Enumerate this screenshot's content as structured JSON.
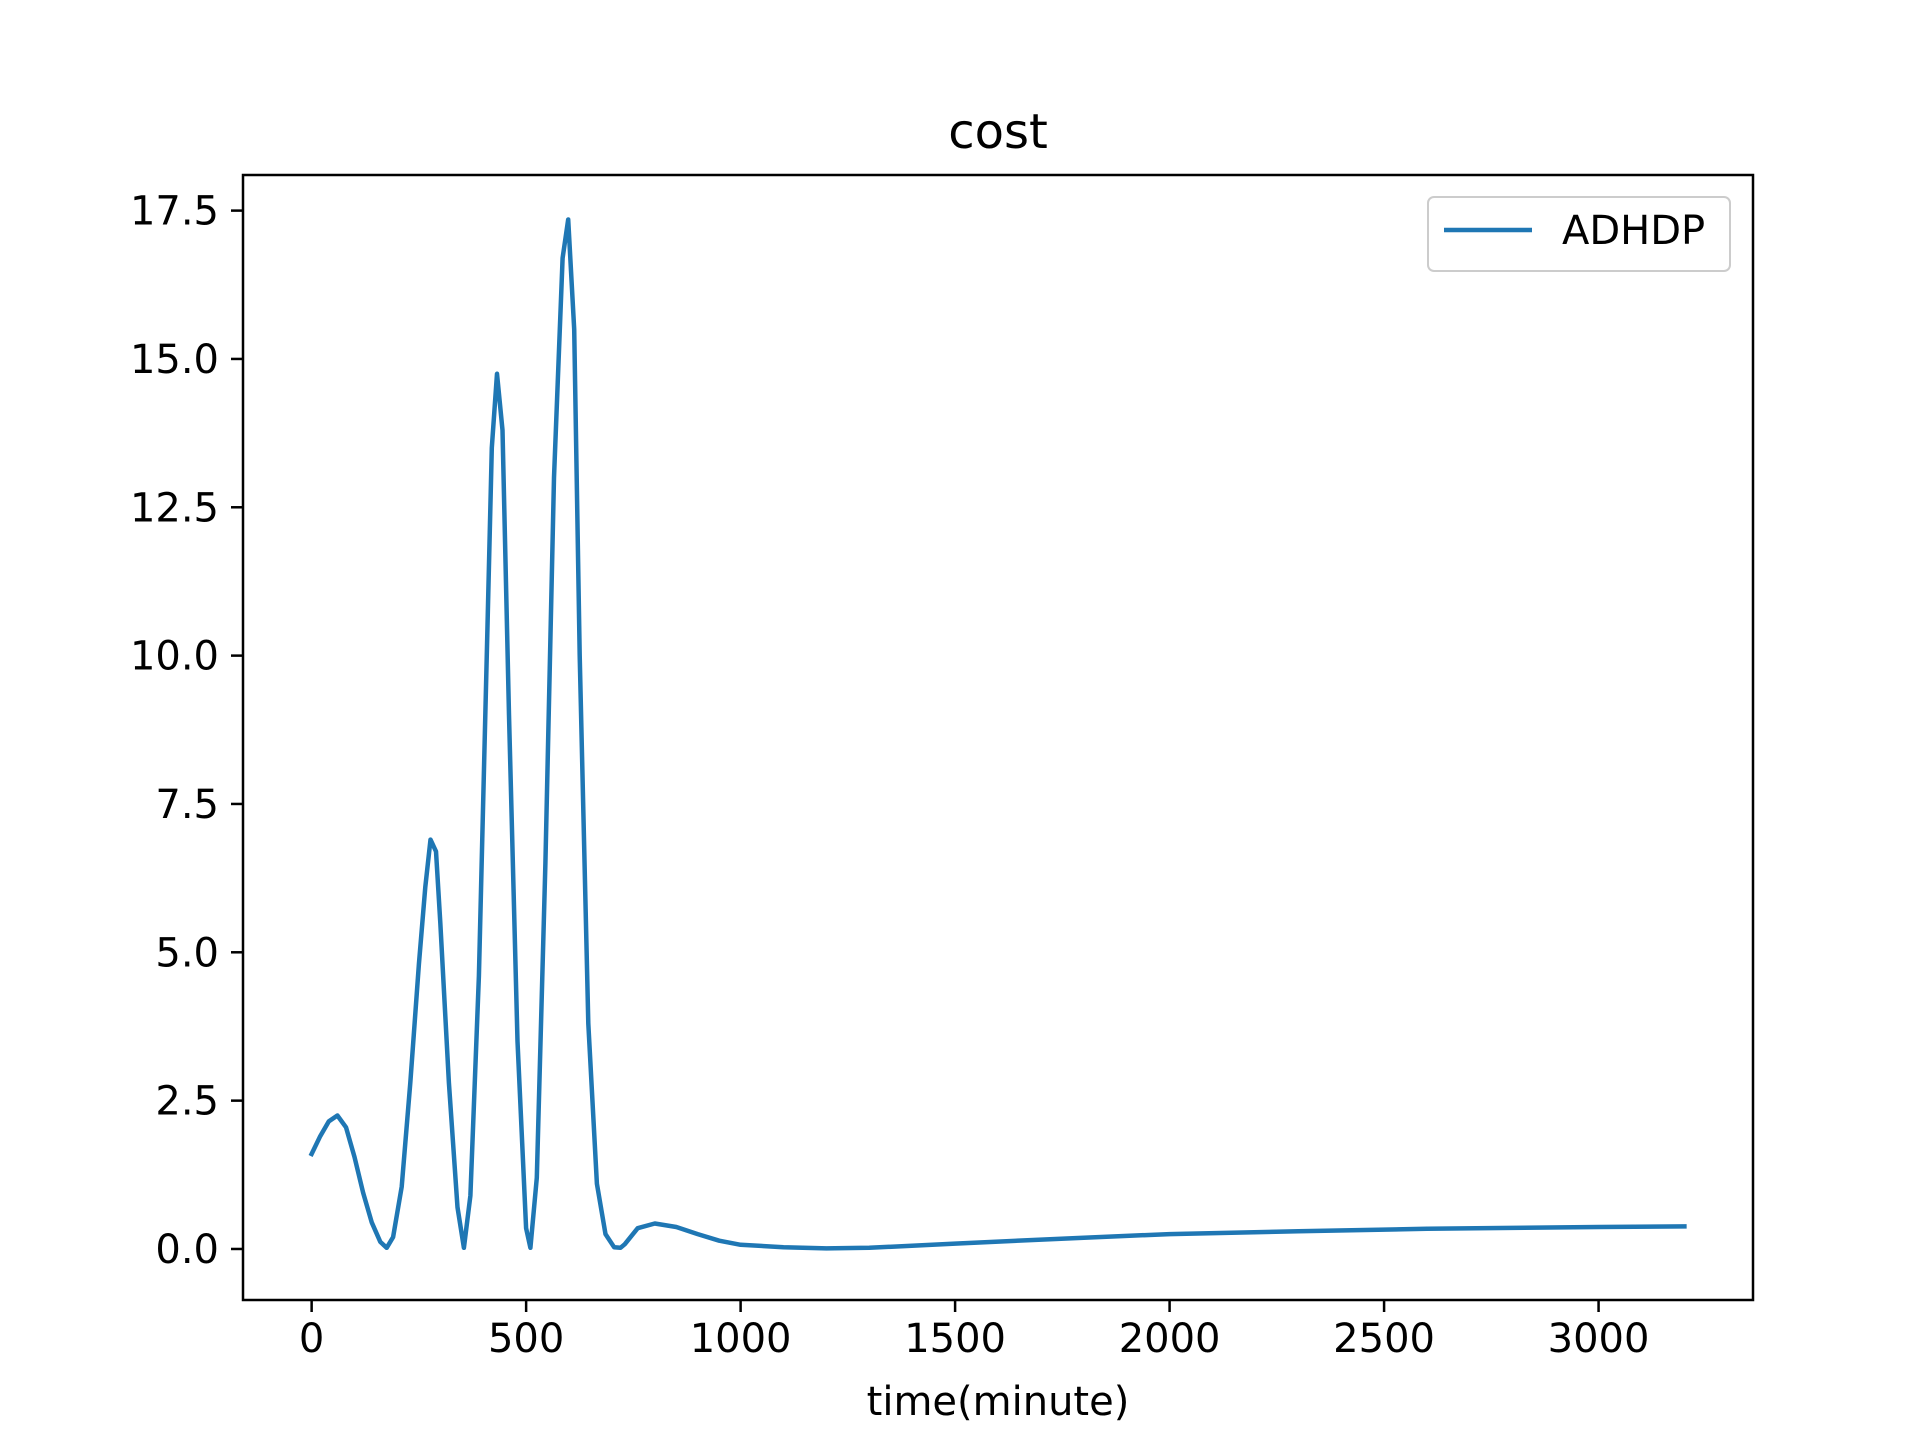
{
  "chart_data": {
    "type": "line",
    "title": "cost",
    "xlabel": "time(minute)",
    "ylabel": "",
    "xlim": [
      -160,
      3360
    ],
    "ylim": [
      -0.86,
      18.1
    ],
    "x_ticks": [
      0,
      500,
      1000,
      1500,
      2000,
      2500,
      3000
    ],
    "x_tick_labels": [
      "0",
      "500",
      "1000",
      "1500",
      "2000",
      "2500",
      "3000"
    ],
    "y_ticks": [
      0.0,
      2.5,
      5.0,
      7.5,
      10.0,
      12.5,
      15.0,
      17.5
    ],
    "y_tick_labels": [
      "0.0",
      "2.5",
      "5.0",
      "7.5",
      "10.0",
      "12.5",
      "15.0",
      "17.5"
    ],
    "grid": false,
    "legend_position": "top-right",
    "colors": {
      "series": "#1f77b4"
    },
    "series": [
      {
        "name": "ADHDP",
        "x": [
          0,
          20,
          40,
          60,
          80,
          100,
          120,
          140,
          160,
          175,
          190,
          210,
          230,
          250,
          265,
          277,
          290,
          300,
          320,
          340,
          355,
          370,
          390,
          410,
          420,
          432,
          445,
          460,
          480,
          500,
          510,
          525,
          545,
          565,
          585,
          598,
          612,
          625,
          645,
          665,
          685,
          705,
          720,
          730,
          760,
          800,
          850,
          900,
          950,
          1000,
          1100,
          1200,
          1300,
          1500,
          1800,
          2000,
          2300,
          2600,
          3000,
          3200
        ],
        "values": [
          1.6,
          1.9,
          2.15,
          2.25,
          2.05,
          1.55,
          0.95,
          0.45,
          0.12,
          0.02,
          0.2,
          1.05,
          2.8,
          4.8,
          6.1,
          6.9,
          6.7,
          5.5,
          2.8,
          0.7,
          0.02,
          0.9,
          4.6,
          10.5,
          13.5,
          14.75,
          13.8,
          9.0,
          3.5,
          0.35,
          0.02,
          1.2,
          6.5,
          13.0,
          16.7,
          17.35,
          15.5,
          10.0,
          3.8,
          1.1,
          0.25,
          0.03,
          0.02,
          0.08,
          0.35,
          0.43,
          0.37,
          0.25,
          0.14,
          0.07,
          0.03,
          0.01,
          0.02,
          0.09,
          0.19,
          0.25,
          0.3,
          0.34,
          0.37,
          0.38
        ]
      }
    ]
  }
}
